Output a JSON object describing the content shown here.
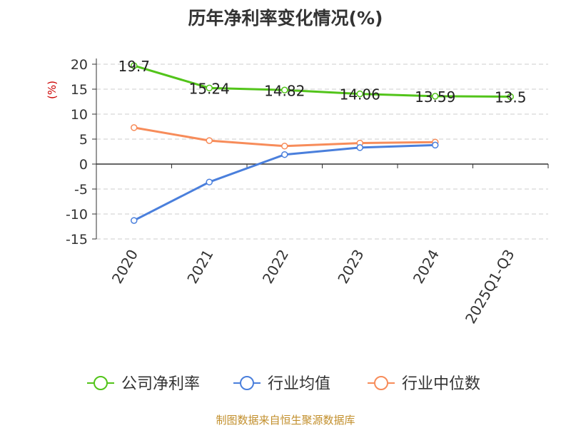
{
  "chart_data": {
    "type": "line",
    "title": "历年净利率变化情况(%)",
    "ylabel": "(%)",
    "xlabel": "",
    "categories": [
      "2020",
      "2021",
      "2022",
      "2023",
      "2024",
      "2025Q1-Q3"
    ],
    "ylim": [
      -15,
      20
    ],
    "yticks": [
      "20",
      "15",
      "10",
      "5",
      "0",
      "-5",
      "-10",
      "-15"
    ],
    "grid": true,
    "legend_position": "bottom",
    "series": [
      {
        "name": "公司净利率",
        "color": "#52c41a",
        "values": [
          19.7,
          15.24,
          14.82,
          14.06,
          13.59,
          13.5
        ],
        "labels": [
          "19.7",
          "15.24",
          "14.82",
          "14.06",
          "13.59",
          "13.5"
        ]
      },
      {
        "name": "行业均值",
        "color": "#4a7fdc",
        "values": [
          -11.3,
          -3.6,
          1.9,
          3.3,
          3.8,
          null
        ]
      },
      {
        "name": "行业中位数",
        "color": "#f78c5a",
        "values": [
          7.3,
          4.7,
          3.6,
          4.2,
          4.4,
          null
        ]
      }
    ]
  },
  "footer": {
    "source": "制图数据来自恒生聚源数据库"
  }
}
